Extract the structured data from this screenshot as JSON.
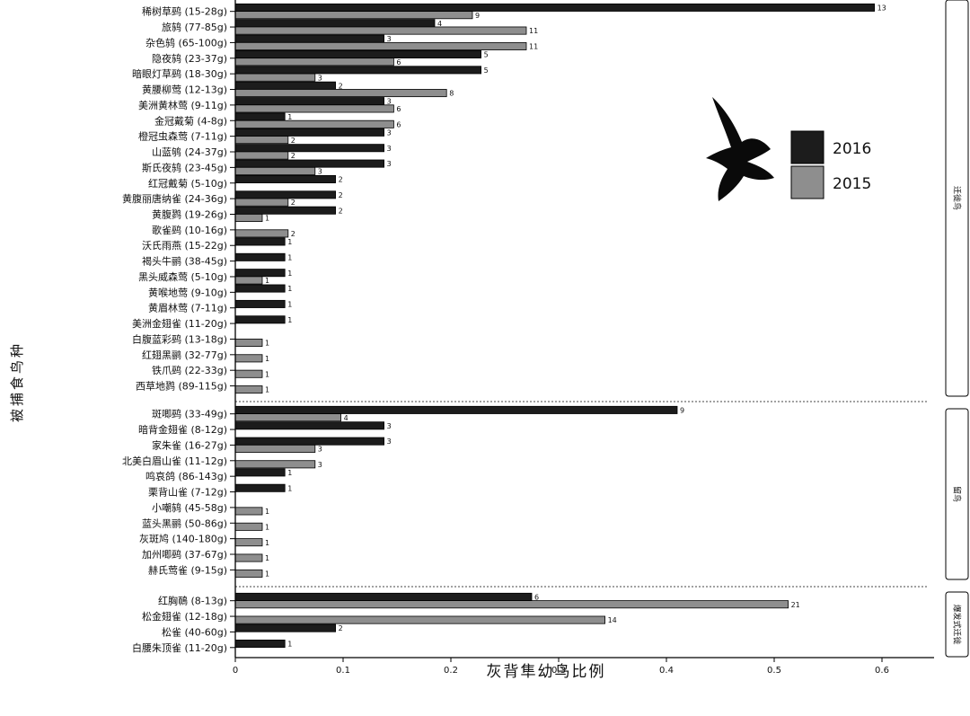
{
  "chart_data": {
    "type": "bar",
    "orientation": "horizontal",
    "xlabel": "灰背隼幼鸟比例",
    "ylabel": "被捕食鸟种",
    "xlim": [
      0,
      0.65
    ],
    "xticks": [
      0,
      0.1,
      0.2,
      0.3,
      0.4,
      0.5,
      0.6
    ],
    "xtick_labels": [
      "0",
      "0.1",
      "0.2",
      "0.3",
      "0.4",
      "0.5",
      "0.6"
    ],
    "legend_position": "top-right",
    "series": [
      {
        "name": "2016",
        "color": "#1c1c1c"
      },
      {
        "name": "2015",
        "color": "#8e8e8e"
      }
    ],
    "groups": [
      {
        "label": "迁徙鸟",
        "rows": [
          {
            "category": "稀树草鹀 (15-28g)",
            "v2016": 0.593,
            "n2016": "13",
            "v2015": 0.22,
            "n2015": "9"
          },
          {
            "category": "旅鸫 (77-85g)",
            "v2016": 0.185,
            "n2016": "4",
            "v2015": 0.27,
            "n2015": "11"
          },
          {
            "category": "杂色鸫 (65-100g)",
            "v2016": 0.138,
            "n2016": "3",
            "v2015": 0.27,
            "n2015": "11"
          },
          {
            "category": "隐夜鸫 (23-37g)",
            "v2016": 0.228,
            "n2016": "5",
            "v2015": 0.147,
            "n2015": "6"
          },
          {
            "category": "暗眼灯草鹀 (18-30g)",
            "v2016": 0.228,
            "n2016": "5",
            "v2015": 0.074,
            "n2015": "3"
          },
          {
            "category": "黄腰柳莺 (12-13g)",
            "v2016": 0.093,
            "n2016": "2",
            "v2015": 0.196,
            "n2015": "8"
          },
          {
            "category": "美洲黄林莺 (9-11g)",
            "v2016": 0.138,
            "n2016": "3",
            "v2015": 0.147,
            "n2015": "6"
          },
          {
            "category": "金冠戴菊 (4-8g)",
            "v2016": 0.046,
            "n2016": "1",
            "v2015": 0.147,
            "n2015": "6"
          },
          {
            "category": "橙冠虫森莺 (7-11g)",
            "v2016": 0.138,
            "n2016": "3",
            "v2015": 0.049,
            "n2015": "2"
          },
          {
            "category": "山蓝鸲 (24-37g)",
            "v2016": 0.138,
            "n2016": "3",
            "v2015": 0.049,
            "n2015": "2"
          },
          {
            "category": "斯氏夜鸫 (23-45g)",
            "v2016": 0.138,
            "n2016": "3",
            "v2015": 0.074,
            "n2015": "3"
          },
          {
            "category": "红冠戴菊 (5-10g)",
            "v2016": 0.093,
            "n2016": "2",
            "v2015": null,
            "n2015": ""
          },
          {
            "category": "黄腹丽唐纳雀 (24-36g)",
            "v2016": 0.093,
            "n2016": "2",
            "v2015": 0.049,
            "n2015": "2"
          },
          {
            "category": "黄腹鹨 (19-26g)",
            "v2016": 0.093,
            "n2016": "2",
            "v2015": 0.025,
            "n2015": "1"
          },
          {
            "category": "歌雀鹀 (10-16g)",
            "v2016": null,
            "n2016": "",
            "v2015": 0.049,
            "n2015": "2"
          },
          {
            "category": "沃氏雨燕 (15-22g)",
            "v2016": 0.046,
            "n2016": "1",
            "v2015": null,
            "n2015": ""
          },
          {
            "category": "褐头牛鹂 (38-45g)",
            "v2016": 0.046,
            "n2016": "1",
            "v2015": null,
            "n2015": ""
          },
          {
            "category": "黑头威森莺 (5-10g)",
            "v2016": 0.046,
            "n2016": "1",
            "v2015": 0.025,
            "n2015": "1"
          },
          {
            "category": "黄喉地莺 (9-10g)",
            "v2016": 0.046,
            "n2016": "1",
            "v2015": null,
            "n2015": ""
          },
          {
            "category": "黄眉林莺 (7-11g)",
            "v2016": 0.046,
            "n2016": "1",
            "v2015": null,
            "n2015": ""
          },
          {
            "category": "美洲金翅雀 (11-20g)",
            "v2016": 0.046,
            "n2016": "1",
            "v2015": null,
            "n2015": ""
          },
          {
            "category": "白腹蓝彩鹀 (13-18g)",
            "v2016": null,
            "n2016": "",
            "v2015": 0.025,
            "n2015": "1"
          },
          {
            "category": "红翅黑鹂 (32-77g)",
            "v2016": null,
            "n2016": "",
            "v2015": 0.025,
            "n2015": "1"
          },
          {
            "category": "铁爪鹀 (22-33g)",
            "v2016": null,
            "n2016": "",
            "v2015": 0.025,
            "n2015": "1"
          },
          {
            "category": "西草地鹨 (89-115g)",
            "v2016": null,
            "n2016": "",
            "v2015": 0.025,
            "n2015": "1"
          }
        ]
      },
      {
        "label": "留鸟",
        "rows": [
          {
            "category": "斑唧鹀 (33-49g)",
            "v2016": 0.41,
            "n2016": "9",
            "v2015": 0.098,
            "n2015": "4"
          },
          {
            "category": "暗背金翅雀 (8-12g)",
            "v2016": 0.138,
            "n2016": "3",
            "v2015": null,
            "n2015": ""
          },
          {
            "category": "家朱雀 (16-27g)",
            "v2016": 0.138,
            "n2016": "3",
            "v2015": 0.074,
            "n2015": "3"
          },
          {
            "category": "北美白眉山雀 (11-12g)",
            "v2016": null,
            "n2016": "",
            "v2015": 0.074,
            "n2015": "3"
          },
          {
            "category": "鸣哀鸽 (86-143g)",
            "v2016": 0.046,
            "n2016": "1",
            "v2015": null,
            "n2015": ""
          },
          {
            "category": "栗背山雀 (7-12g)",
            "v2016": 0.046,
            "n2016": "1",
            "v2015": null,
            "n2015": ""
          },
          {
            "category": "小嘲鸫 (45-58g)",
            "v2016": null,
            "n2016": "",
            "v2015": 0.025,
            "n2015": "1"
          },
          {
            "category": "蓝头黑鹂 (50-86g)",
            "v2016": null,
            "n2016": "",
            "v2015": 0.025,
            "n2015": "1"
          },
          {
            "category": "灰斑鸠 (140-180g)",
            "v2016": null,
            "n2016": "",
            "v2015": 0.025,
            "n2015": "1"
          },
          {
            "category": "加州唧鹀 (37-67g)",
            "v2016": null,
            "n2016": "",
            "v2015": 0.025,
            "n2015": "1"
          },
          {
            "category": "赫氏莺雀 (9-15g)",
            "v2016": null,
            "n2016": "",
            "v2015": 0.025,
            "n2015": "1"
          }
        ]
      },
      {
        "label": "爆发式迁徙",
        "rows": [
          {
            "category": "红胸鳾 (8-13g)",
            "v2016": 0.275,
            "n2016": "6",
            "v2015": 0.513,
            "n2015": "21"
          },
          {
            "category": "松金翅雀 (12-18g)",
            "v2016": null,
            "n2016": "",
            "v2015": 0.343,
            "n2015": "14"
          },
          {
            "category": "松雀 (40-60g)",
            "v2016": 0.093,
            "n2016": "2",
            "v2015": null,
            "n2015": ""
          },
          {
            "category": "白腰朱顶雀 (11-20g)",
            "v2016": 0.046,
            "n2016": "1",
            "v2015": null,
            "n2015": ""
          }
        ]
      }
    ]
  }
}
